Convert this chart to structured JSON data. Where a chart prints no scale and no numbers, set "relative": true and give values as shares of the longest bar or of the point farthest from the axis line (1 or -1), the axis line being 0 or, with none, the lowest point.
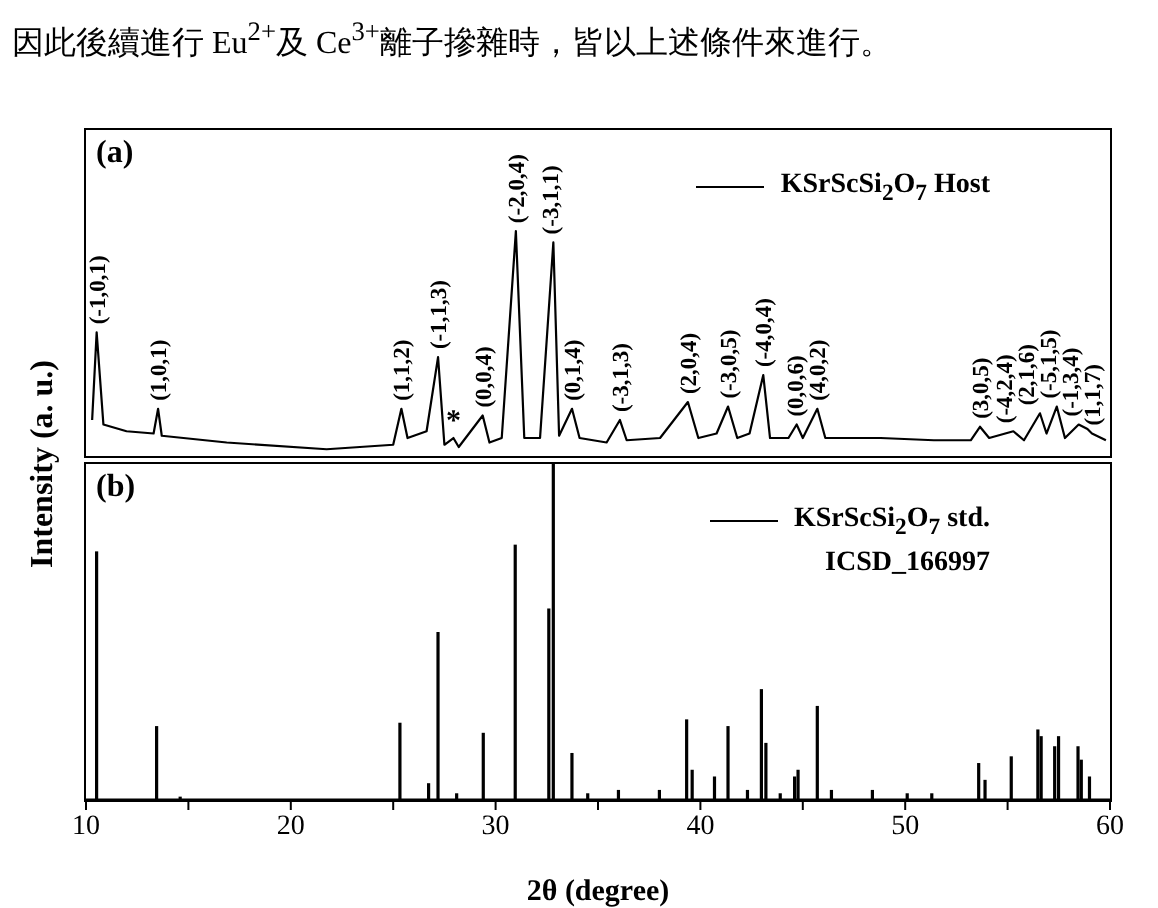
{
  "chart_data": [
    {
      "type": "line",
      "title": "(a)",
      "ylabel": "Intensity (a. u.)",
      "relative": true,
      "xlim": [
        10,
        60
      ],
      "tick_labels": false,
      "legend": "top right",
      "annotations": [
        "因此後續進行 Eu$^{2+}$及 Ce$^{3+}$離子摻雜時，皆以上述條件來進行。",
        {
          "text": "(-1,0,1)",
          "x": 10.52,
          "y": 0.55
        },
        {
          "text": "(1,0,1)",
          "x": 13.52,
          "y": 0.21
        },
        {
          "text": "(1,1,2)",
          "x": 25.4,
          "y": 0.21
        },
        {
          "text": "(-1,1,3)",
          "x": 27.19,
          "y": 0.44
        },
        {
          "text": "*",
          "x": 27.94,
          "y": 0.08
        },
        {
          "text": "(0,0,4)",
          "x": 29.37,
          "y": 0.18
        },
        {
          "text": "(-2,0,4)",
          "x": 30.99,
          "y": 1.0
        },
        {
          "text": "(-3,1,1)",
          "x": 32.82,
          "y": 0.95
        },
        {
          "text": "(0,1,4)",
          "x": 33.73,
          "y": 0.21
        },
        {
          "text": "(-3,1,3)",
          "x": 36.07,
          "y": 0.16
        },
        {
          "text": "(2,0,4)",
          "x": 39.39,
          "y": 0.24
        },
        {
          "text": "(-3,0,5)",
          "x": 41.35,
          "y": 0.22
        },
        {
          "text": "(-4,0,4)",
          "x": 43.07,
          "y": 0.36
        },
        {
          "text": "(0,0,6)",
          "x": 44.7,
          "y": 0.14
        },
        {
          "text": "(4,0,2)",
          "x": 45.71,
          "y": 0.21
        },
        {
          "text": "(3,0,5)",
          "x": 53.65,
          "y": 0.13
        },
        {
          "text": "(-4,2,4)",
          "x": 55.28,
          "y": 0.11
        },
        {
          "text": "(2,1,6)",
          "x": 56.58,
          "y": 0.19
        },
        {
          "text": "(-5,1,5)",
          "x": 57.4,
          "y": 0.22
        },
        {
          "text": "(-1,3,4)",
          "x": 58.47,
          "y": 0.14
        },
        {
          "text": "(1,1,7)",
          "x": 59.12,
          "y": 0.1
        }
      ],
      "series": [
        {
          "name": "KSrScSi$_{2}$O$_{7}$ Host",
          "color": "#000000",
          "x": [
            10.3,
            10.52,
            10.85,
            11.98,
            13.3,
            13.52,
            13.7,
            16.87,
            21.75,
            25.0,
            25.4,
            25.7,
            26.63,
            27.19,
            27.5,
            27.94,
            28.2,
            29.37,
            29.7,
            30.3,
            30.99,
            31.4,
            32.17,
            32.82,
            33.1,
            33.73,
            34.1,
            35.42,
            36.07,
            36.4,
            38.03,
            39.39,
            39.9,
            40.79,
            41.35,
            41.8,
            42.4,
            43.07,
            43.4,
            44.3,
            44.7,
            45.0,
            45.71,
            46.1,
            48.8,
            51.4,
            53.2,
            53.65,
            54.1,
            55.28,
            55.8,
            56.58,
            56.9,
            57.4,
            57.8,
            58.47,
            58.9,
            59.12,
            59.8
          ],
          "values": [
            0.16,
            0.55,
            0.14,
            0.11,
            0.1,
            0.21,
            0.09,
            0.06,
            0.03,
            0.05,
            0.21,
            0.08,
            0.11,
            0.44,
            0.05,
            0.08,
            0.04,
            0.18,
            0.06,
            0.08,
            1.0,
            0.08,
            0.08,
            0.95,
            0.09,
            0.21,
            0.08,
            0.06,
            0.16,
            0.07,
            0.08,
            0.24,
            0.08,
            0.1,
            0.22,
            0.08,
            0.1,
            0.36,
            0.08,
            0.08,
            0.14,
            0.08,
            0.21,
            0.08,
            0.08,
            0.07,
            0.07,
            0.13,
            0.08,
            0.11,
            0.07,
            0.19,
            0.1,
            0.22,
            0.08,
            0.14,
            0.12,
            0.1,
            0.07
          ]
        }
      ]
    },
    {
      "type": "bar",
      "title": "(b)",
      "xlabel": "2θ (degree)",
      "relative": true,
      "xlim": [
        10,
        60
      ],
      "tick_labels": "x",
      "legend": "top right",
      "xticks": [
        10,
        {
          "value": 15,
          "label": null
        },
        20,
        {
          "value": 25,
          "label": null
        },
        30,
        {
          "value": 35,
          "label": null
        },
        40,
        {
          "value": 45,
          "label": null
        },
        50,
        {
          "value": 55,
          "label": null
        },
        60
      ],
      "annotations": [
        "ICSD_166997"
      ],
      "series": [
        {
          "name": "KSrScSi$_{2}$O$_{7}$ std.",
          "color": "#000000",
          "x": [
            10.52,
            13.45,
            14.6,
            25.33,
            26.73,
            27.19,
            28.1,
            29.4,
            30.96,
            32.6,
            32.82,
            33.73,
            34.5,
            36.0,
            38.0,
            39.33,
            39.6,
            40.69,
            41.35,
            42.3,
            42.98,
            43.2,
            43.9,
            44.6,
            44.77,
            45.71,
            46.4,
            48.4,
            50.1,
            51.3,
            53.59,
            53.9,
            55.18,
            56.48,
            56.64,
            57.3,
            57.49,
            58.44,
            58.6,
            59.0
          ],
          "values": [
            0.74,
            0.22,
            0.01,
            0.23,
            0.05,
            0.5,
            0.02,
            0.2,
            0.76,
            0.57,
            1.0,
            0.14,
            0.02,
            0.03,
            0.03,
            0.24,
            0.09,
            0.07,
            0.22,
            0.03,
            0.33,
            0.17,
            0.02,
            0.07,
            0.09,
            0.28,
            0.03,
            0.03,
            0.02,
            0.02,
            0.11,
            0.06,
            0.13,
            0.21,
            0.19,
            0.16,
            0.19,
            0.16,
            0.12,
            0.07
          ]
        }
      ]
    }
  ]
}
